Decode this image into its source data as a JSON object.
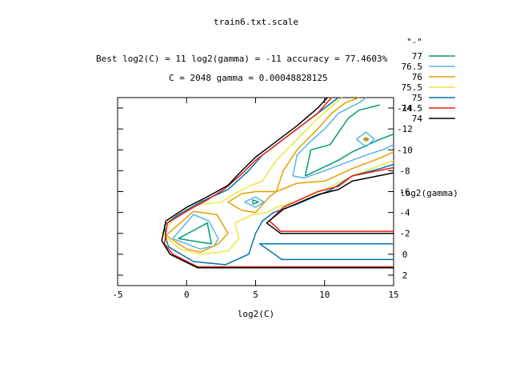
{
  "chart_data": {
    "type": "contour",
    "title": "train6.txt.scale",
    "subtitle_lines": [
      "Best log2(C) = 11  log2(gamma) = -11  accuracy = 77.4603%",
      "C = 2048  gamma = 0.00048828125"
    ],
    "xlabel": "log2(C)",
    "ylabel": "log2(gamma)",
    "xlim": [
      -5,
      15
    ],
    "ylim": [
      3,
      -15
    ],
    "xticks": [
      "-5",
      "0",
      "5",
      "10",
      "15"
    ],
    "yticks": [
      "-14",
      "-12",
      "-10",
      "-8",
      "-6",
      "-4",
      "-2",
      "0",
      "2"
    ],
    "legend": {
      "title": "\"-\"",
      "placement": "top-right",
      "entries": [
        "77",
        "76.5",
        "76",
        "75.5",
        "75",
        "74.5",
        "74"
      ]
    },
    "series": [
      {
        "name": "77",
        "color": "#009e73",
        "lines": [
          [
            [
              -0.6,
              -1.5
            ],
            [
              1.5,
              -3.0
            ],
            [
              1.8,
              -1.0
            ],
            [
              -0.6,
              -1.5
            ]
          ],
          [
            [
              4.8,
              -4.8
            ],
            [
              5.2,
              -5.0
            ],
            [
              4.8,
              -5.2
            ],
            [
              4.8,
              -4.8
            ]
          ],
          [
            [
              8.6,
              -7.5
            ],
            [
              9.0,
              -10.0
            ],
            [
              10.4,
              -10.5
            ],
            [
              11.7,
              -13.0
            ],
            [
              12.5,
              -13.8
            ],
            [
              14.0,
              -14.3
            ]
          ],
          [
            [
              8.6,
              -7.5
            ],
            [
              11.0,
              -9.0
            ],
            [
              12.0,
              -9.8
            ],
            [
              14.0,
              -11.0
            ],
            [
              15.0,
              -11.5
            ]
          ],
          [
            [
              12.8,
              -11.0
            ],
            [
              13.2,
              -11.0
            ]
          ]
        ]
      },
      {
        "name": "76.5",
        "color": "#56b4e9",
        "lines": [
          [
            [
              -1.0,
              -1.5
            ],
            [
              0.5,
              -3.8
            ],
            [
              1.6,
              -3.2
            ],
            [
              2.3,
              -1.5
            ],
            [
              2.0,
              -0.8
            ],
            [
              1.0,
              -0.5
            ],
            [
              -1.0,
              -1.5
            ]
          ],
          [
            [
              4.2,
              -5.0
            ],
            [
              5.0,
              -5.5
            ],
            [
              5.6,
              -5.0
            ],
            [
              5.0,
              -4.5
            ],
            [
              4.2,
              -5.0
            ]
          ],
          [
            [
              7.7,
              -7.5
            ],
            [
              8.0,
              -9.5
            ],
            [
              8.9,
              -10.7
            ],
            [
              10.0,
              -12.0
            ],
            [
              11.0,
              -13.5
            ],
            [
              12.5,
              -14.5
            ],
            [
              13.0,
              -15.0
            ]
          ],
          [
            [
              7.7,
              -7.5
            ],
            [
              8.5,
              -7.3
            ],
            [
              10.0,
              -8.0
            ],
            [
              11.0,
              -8.5
            ],
            [
              13.0,
              -9.5
            ],
            [
              14.2,
              -10.0
            ],
            [
              15.0,
              -10.5
            ]
          ],
          [
            [
              12.3,
              -11.0
            ],
            [
              13.0,
              -11.7
            ],
            [
              13.6,
              -11.0
            ],
            [
              13.0,
              -10.3
            ],
            [
              12.3,
              -11.0
            ]
          ]
        ]
      },
      {
        "name": "76",
        "color": "#e69f00",
        "lines": [
          [
            [
              -1.5,
              -1.8
            ],
            [
              0.5,
              -4.1
            ],
            [
              2.2,
              -3.8
            ],
            [
              3.0,
              -2.0
            ],
            [
              2.3,
              -1.0
            ],
            [
              1.0,
              -0.2
            ],
            [
              0.0,
              -0.5
            ],
            [
              -1.5,
              -1.8
            ]
          ],
          [
            [
              6.5,
              -6.0
            ],
            [
              7.0,
              -8.0
            ],
            [
              8.0,
              -10.0
            ],
            [
              9.5,
              -12.0
            ],
            [
              10.5,
              -13.5
            ],
            [
              11.5,
              -14.5
            ],
            [
              12.5,
              -15.0
            ]
          ],
          [
            [
              6.5,
              -6.0
            ],
            [
              6.0,
              -5.5
            ],
            [
              5.0,
              -4.0
            ],
            [
              4.0,
              -4.2
            ],
            [
              3.0,
              -5.0
            ],
            [
              4.0,
              -5.8
            ],
            [
              5.0,
              -6.0
            ],
            [
              6.5,
              -6.0
            ]
          ],
          [
            [
              6.5,
              -6.0
            ],
            [
              8.0,
              -6.8
            ],
            [
              10.0,
              -7.0
            ],
            [
              12.0,
              -8.2
            ],
            [
              14.0,
              -9.2
            ],
            [
              15.0,
              -9.8
            ]
          ],
          [
            [
              12.8,
              -11.0
            ],
            [
              13.0,
              -11.2
            ],
            [
              13.2,
              -11.0
            ],
            [
              13.0,
              -10.8
            ],
            [
              12.8,
              -11.0
            ]
          ]
        ]
      },
      {
        "name": "75.5",
        "color": "#f0e442",
        "lines": [
          [
            [
              -1.8,
              -2.0
            ],
            [
              -1.0,
              -3.3
            ],
            [
              0.0,
              -4.3
            ],
            [
              1.0,
              -4.8
            ],
            [
              2.5,
              -5.0
            ],
            [
              3.5,
              -5.8
            ],
            [
              4.5,
              -6.5
            ],
            [
              5.5,
              -7.0
            ],
            [
              6.5,
              -9.0
            ],
            [
              8.0,
              -11.0
            ],
            [
              9.5,
              -13.0
            ],
            [
              10.8,
              -14.5
            ],
            [
              11.3,
              -15.0
            ]
          ],
          [
            [
              -1.8,
              -2.0
            ],
            [
              -0.5,
              -0.5
            ],
            [
              1.0,
              0.0
            ],
            [
              3.0,
              -0.3
            ],
            [
              3.8,
              -1.5
            ],
            [
              3.5,
              -3.0
            ],
            [
              4.8,
              -3.8
            ],
            [
              5.8,
              -4.0
            ],
            [
              6.5,
              -4.5
            ],
            [
              7.8,
              -5.0
            ],
            [
              10.0,
              -6.2
            ],
            [
              12.0,
              -7.5
            ],
            [
              14.0,
              -8.5
            ],
            [
              15.0,
              -9.0
            ]
          ]
        ]
      },
      {
        "name": "75",
        "color": "#0072b2",
        "lines": [
          [
            [
              -1.6,
              -2.8
            ],
            [
              -0.7,
              -3.7
            ],
            [
              1.0,
              -5.0
            ],
            [
              3.0,
              -6.2
            ],
            [
              4.5,
              -8.0
            ],
            [
              5.5,
              -9.5
            ],
            [
              7.0,
              -11.0
            ],
            [
              8.5,
              -12.5
            ],
            [
              10.0,
              -14.0
            ],
            [
              11.0,
              -15.0
            ]
          ],
          [
            [
              -1.6,
              -2.8
            ],
            [
              -1.5,
              -1.5
            ],
            [
              -1.3,
              -0.7
            ],
            [
              0.5,
              0.7
            ],
            [
              2.8,
              1.0
            ],
            [
              4.5,
              0.0
            ],
            [
              5.0,
              -2.0
            ],
            [
              5.5,
              -3.2
            ],
            [
              6.3,
              -4.0
            ],
            [
              8.0,
              -4.8
            ],
            [
              10.5,
              -6.2
            ],
            [
              12.0,
              -7.5
            ],
            [
              14.0,
              -8.2
            ],
            [
              15.0,
              -8.6
            ]
          ],
          [
            [
              15.0,
              -1.0
            ],
            [
              5.3,
              -1.0
            ],
            [
              6.9,
              0.5
            ],
            [
              15.0,
              0.5
            ]
          ]
        ]
      },
      {
        "name": "74.5",
        "color": "#e51e10",
        "lines": [
          [
            [
              -1.4,
              -3.0
            ],
            [
              0.5,
              -4.5
            ],
            [
              1.5,
              -5.2
            ],
            [
              2.8,
              -6.3
            ],
            [
              4.0,
              -7.7
            ],
            [
              5.0,
              -9.0
            ],
            [
              6.5,
              -10.5
            ],
            [
              8.0,
              -12.0
            ],
            [
              9.5,
              -13.5
            ],
            [
              10.5,
              -15.0
            ]
          ],
          [
            [
              -1.4,
              -3.0
            ],
            [
              -1.6,
              -1.0
            ],
            [
              -1.0,
              0.0
            ],
            [
              0.8,
              1.2
            ],
            [
              15.0,
              1.2
            ]
          ],
          [
            [
              15.0,
              -8.3
            ],
            [
              12.0,
              -7.5
            ],
            [
              11.0,
              -6.5
            ],
            [
              9.5,
              -6.0
            ],
            [
              7.0,
              -4.5
            ],
            [
              6.0,
              -3.2
            ],
            [
              6.8,
              -2.2
            ],
            [
              15.0,
              -2.2
            ]
          ]
        ]
      },
      {
        "name": "74",
        "color": "#000000",
        "lines": [
          [
            [
              -1.5,
              -3.2
            ],
            [
              0.0,
              -4.5
            ],
            [
              1.5,
              -5.5
            ],
            [
              3.0,
              -6.6
            ],
            [
              4.0,
              -8.0
            ],
            [
              5.0,
              -9.3
            ],
            [
              6.5,
              -10.8
            ],
            [
              8.0,
              -12.3
            ],
            [
              9.5,
              -14.0
            ],
            [
              10.2,
              -15.0
            ]
          ],
          [
            [
              -1.5,
              -3.2
            ],
            [
              -1.8,
              -1.3
            ],
            [
              -1.2,
              0.0
            ],
            [
              0.8,
              1.3
            ],
            [
              15.0,
              1.3
            ]
          ],
          [
            [
              15.0,
              -7.8
            ],
            [
              12.0,
              -7.0
            ],
            [
              11.0,
              -6.2
            ],
            [
              9.5,
              -5.7
            ],
            [
              7.0,
              -4.3
            ],
            [
              5.8,
              -3.0
            ],
            [
              6.8,
              -2.0
            ],
            [
              15.0,
              -2.0
            ]
          ]
        ]
      }
    ]
  }
}
